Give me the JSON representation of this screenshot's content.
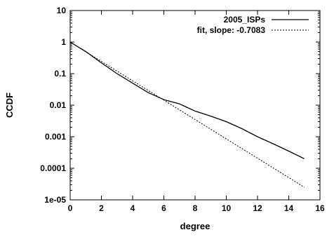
{
  "chart_data": {
    "type": "line",
    "title": "",
    "xlabel": "degree",
    "ylabel": "CCDF",
    "xlim": [
      0,
      16
    ],
    "ylim": [
      1e-05,
      10
    ],
    "y_scale": "log",
    "grid": false,
    "legend_position": "top-right",
    "x_ticks": [
      0,
      2,
      4,
      6,
      8,
      10,
      12,
      14,
      16
    ],
    "x_tick_labels": [
      "0",
      "2",
      "4",
      "6",
      "8",
      "10",
      "12",
      "14",
      "16"
    ],
    "y_ticks": [
      1e-05,
      0.0001,
      0.001,
      0.01,
      0.1,
      1,
      10
    ],
    "y_tick_labels": [
      "1e-05",
      "0.0001",
      "0.001",
      "0.01",
      "0.1",
      "1",
      "10"
    ],
    "series": [
      {
        "name": "2005_ISPs",
        "style": "solid",
        "color": "#000000",
        "x": [
          0,
          1,
          2,
          3,
          4,
          5,
          6,
          7,
          8,
          9,
          10,
          11,
          12,
          13,
          14,
          15
        ],
        "y": [
          1.0,
          0.5,
          0.22,
          0.1,
          0.05,
          0.025,
          0.015,
          0.011,
          0.0065,
          0.0045,
          0.003,
          0.0018,
          0.001,
          0.0006,
          0.00035,
          0.0002
        ]
      },
      {
        "name": "fit, slope: -0.7083",
        "style": "dashed",
        "color": "#000000",
        "x": [
          0,
          15
        ],
        "y": [
          1.0,
          2.5e-05
        ]
      }
    ]
  }
}
